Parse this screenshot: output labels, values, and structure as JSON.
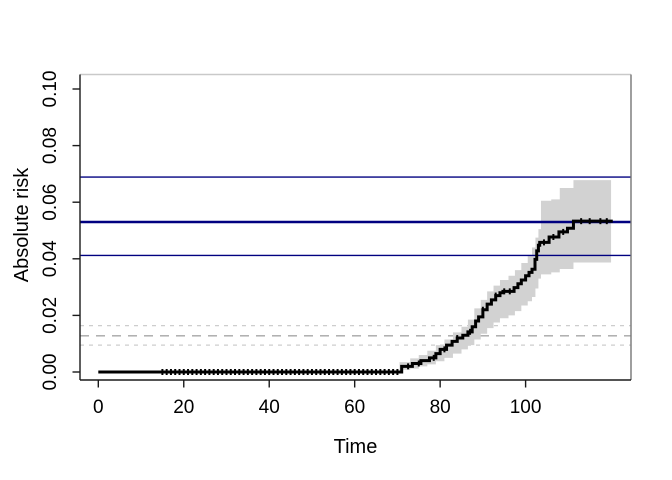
{
  "chart_data": {
    "type": "line",
    "subtype": "cumulative-incidence-step-curve-with-confidence-band",
    "title": "",
    "xlabel": "Time",
    "ylabel": "Absolute risk",
    "grid": false,
    "legend": "none",
    "xlim": [
      -4.3,
      124.8
    ],
    "ylim": [
      -0.0026,
      0.1051
    ],
    "x_ticks": [
      {
        "v": 0,
        "label": "0"
      },
      {
        "v": 20,
        "label": "20"
      },
      {
        "v": 40,
        "label": "40"
      },
      {
        "v": 60,
        "label": "60"
      },
      {
        "v": 80,
        "label": "80"
      },
      {
        "v": 100,
        "label": "100"
      }
    ],
    "y_ticks": [
      {
        "v": 0.0,
        "label": "0.00"
      },
      {
        "v": 0.02,
        "label": "0.02"
      },
      {
        "v": 0.04,
        "label": "0.04"
      },
      {
        "v": 0.06,
        "label": "0.06"
      },
      {
        "v": 0.08,
        "label": "0.08"
      },
      {
        "v": 0.1,
        "label": "0.10"
      }
    ],
    "curve": {
      "name": "absolute-risk-step-estimate",
      "color": "#000000",
      "width": 3,
      "points": [
        [
          0,
          0.0
        ],
        [
          71,
          0.002
        ],
        [
          73.5,
          0.003
        ],
        [
          75.5,
          0.004
        ],
        [
          77.5,
          0.005
        ],
        [
          79,
          0.0065
        ],
        [
          80,
          0.008
        ],
        [
          81.5,
          0.0095
        ],
        [
          82.8,
          0.0108
        ],
        [
          84,
          0.012
        ],
        [
          85.3,
          0.013
        ],
        [
          86.5,
          0.0142
        ],
        [
          87.5,
          0.016
        ],
        [
          88.3,
          0.018
        ],
        [
          89,
          0.0195
        ],
        [
          90,
          0.022
        ],
        [
          91,
          0.024
        ],
        [
          92,
          0.0255
        ],
        [
          93,
          0.027
        ],
        [
          94,
          0.028
        ],
        [
          94.7,
          0.0285
        ],
        [
          97.3,
          0.0298
        ],
        [
          98.2,
          0.0312
        ],
        [
          99,
          0.0325
        ],
        [
          100,
          0.034
        ],
        [
          100.8,
          0.0352
        ],
        [
          101.5,
          0.0363
        ],
        [
          102.2,
          0.0398
        ],
        [
          102.6,
          0.0428
        ],
        [
          103,
          0.0448
        ],
        [
          103.3,
          0.0458
        ],
        [
          105.5,
          0.0477
        ],
        [
          107.8,
          0.0495
        ],
        [
          109.8,
          0.0508
        ],
        [
          111.2,
          0.0533
        ],
        [
          120.4,
          0.0533
        ]
      ]
    },
    "confidence_band": {
      "color": "#d2d2d2",
      "points": [
        [
          70.5,
          0.0008,
          0.0035
        ],
        [
          73,
          0.0012,
          0.0048
        ],
        [
          75,
          0.002,
          0.006
        ],
        [
          77,
          0.0027,
          0.0075
        ],
        [
          79,
          0.0038,
          0.0095
        ],
        [
          81,
          0.005,
          0.0115
        ],
        [
          83,
          0.0065,
          0.014
        ],
        [
          85,
          0.008,
          0.016
        ],
        [
          86.5,
          0.0095,
          0.0185
        ],
        [
          88,
          0.0115,
          0.0225
        ],
        [
          89.5,
          0.0135,
          0.0255
        ],
        [
          91,
          0.0155,
          0.0285
        ],
        [
          92.5,
          0.0175,
          0.0305
        ],
        [
          94,
          0.019,
          0.0325
        ],
        [
          96,
          0.02,
          0.034
        ],
        [
          97.5,
          0.0215,
          0.036
        ],
        [
          99,
          0.0235,
          0.0385
        ],
        [
          100.5,
          0.025,
          0.041
        ],
        [
          101.5,
          0.0265,
          0.044
        ],
        [
          102.3,
          0.0295,
          0.0475
        ],
        [
          103,
          0.033,
          0.0505
        ],
        [
          103.6,
          0.0345,
          0.0605
        ],
        [
          106,
          0.0352,
          0.061
        ],
        [
          108,
          0.0364,
          0.065
        ],
        [
          111.2,
          0.0387,
          0.0678
        ],
        [
          120,
          0.0387,
          0.0678
        ]
      ]
    },
    "solid_reference_lines": [
      {
        "value": 0.0689,
        "color": "#000080",
        "width": 1.4
      },
      {
        "value": 0.053,
        "color": "#000080",
        "width": 2.6
      },
      {
        "value": 0.0412,
        "color": "#000080",
        "width": 1.4
      }
    ],
    "dashed_reference_lines": [
      {
        "value": 0.0164,
        "color": "#cdcdcd",
        "width": 1.3,
        "dash": "4 5"
      },
      {
        "value": 0.0128,
        "color": "#a6a6a6",
        "width": 1.4,
        "dash": "9 7"
      },
      {
        "value": 0.0095,
        "color": "#cdcdcd",
        "width": 1.3,
        "dash": "4 5"
      }
    ],
    "censor_marks": {
      "color": "#000000",
      "times": [
        15,
        16,
        17,
        18,
        19,
        20,
        21,
        22,
        23,
        24,
        25,
        26,
        27,
        28,
        29,
        30,
        31,
        32,
        33,
        34,
        35,
        36,
        37,
        38,
        39,
        40,
        41,
        42,
        43,
        44,
        45,
        46,
        47,
        48,
        49,
        50,
        51,
        52,
        53,
        54,
        55,
        56,
        57,
        58,
        59,
        60,
        61,
        62,
        63,
        64,
        65,
        66,
        67,
        68,
        69,
        70,
        72.5,
        75,
        78.5,
        81,
        84,
        87,
        90,
        93,
        95,
        96.3,
        104.3,
        106.5,
        108.8,
        113,
        115,
        117.5,
        119
      ]
    },
    "axis_color": "#1a1a1a",
    "box_top_color": "#c9c9c9",
    "box_right_color": "#767676",
    "plot_background": "#ffffff"
  }
}
